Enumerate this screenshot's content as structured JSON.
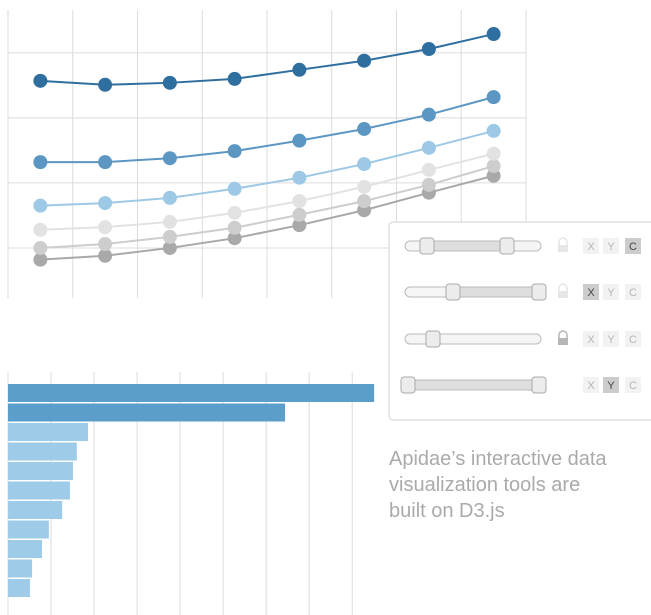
{
  "chart_data": [
    {
      "type": "line",
      "categories": [
        null,
        null,
        null,
        null,
        null,
        null,
        null,
        null
      ],
      "ylim": [
        0.23,
        4.66
      ],
      "yticks": [
        1,
        2,
        3,
        4
      ],
      "grid": true,
      "series": [
        {
          "color": "#2f6fa0",
          "values": [
            3.57,
            3.51,
            3.54,
            3.6,
            3.74,
            3.88,
            4.06,
            4.29
          ]
        },
        {
          "color": "#5b97c2",
          "values": [
            2.32,
            2.32,
            2.38,
            2.49,
            2.65,
            2.83,
            3.05,
            3.32
          ]
        },
        {
          "color": "#9ec9e6",
          "values": [
            1.65,
            1.69,
            1.77,
            1.91,
            2.08,
            2.29,
            2.54,
            2.8
          ]
        },
        {
          "color": "#e2e2e2",
          "values": [
            1.28,
            1.32,
            1.4,
            1.54,
            1.72,
            1.94,
            2.2,
            2.45
          ]
        },
        {
          "color": "#cdcdcd",
          "values": [
            1.0,
            1.06,
            1.17,
            1.31,
            1.51,
            1.72,
            1.97,
            2.26
          ]
        },
        {
          "color": "#a9a9a9",
          "values": [
            0.82,
            0.88,
            1.0,
            1.15,
            1.35,
            1.58,
            1.85,
            2.11
          ]
        }
      ]
    },
    {
      "type": "barh",
      "categories": [
        null,
        null,
        null,
        null,
        null,
        null,
        null,
        null,
        null,
        null,
        null
      ],
      "xlim": [
        0,
        8.6
      ],
      "xticks": [
        1,
        2,
        3,
        4,
        5,
        6,
        7,
        8
      ],
      "grid": true,
      "values": [
        8.51,
        6.44,
        1.86,
        1.6,
        1.51,
        1.44,
        1.26,
        0.95,
        0.79,
        0.56,
        0.51
      ],
      "colors": [
        "#5b9ec9",
        "#5b9ec9",
        "#9ecbe8",
        "#9ecbe8",
        "#9ecbe8",
        "#9ecbe8",
        "#9ecbe8",
        "#9ecbe8",
        "#9ecbe8",
        "#9ecbe8",
        "#9ecbe8"
      ]
    }
  ],
  "panel": {
    "rows": [
      {
        "buttons": [
          "X",
          "Y",
          "C"
        ],
        "active": 2
      },
      {
        "buttons": [
          "X",
          "Y",
          "C"
        ],
        "active": 0
      },
      {
        "buttons": [
          "X",
          "Y",
          "C"
        ],
        "active": null
      },
      {
        "buttons": [
          "X",
          "Y",
          "C"
        ],
        "active": 1
      }
    ]
  },
  "caption": [
    "Apidae’s interactive data",
    "visualization tools are",
    "built on D3.js"
  ]
}
